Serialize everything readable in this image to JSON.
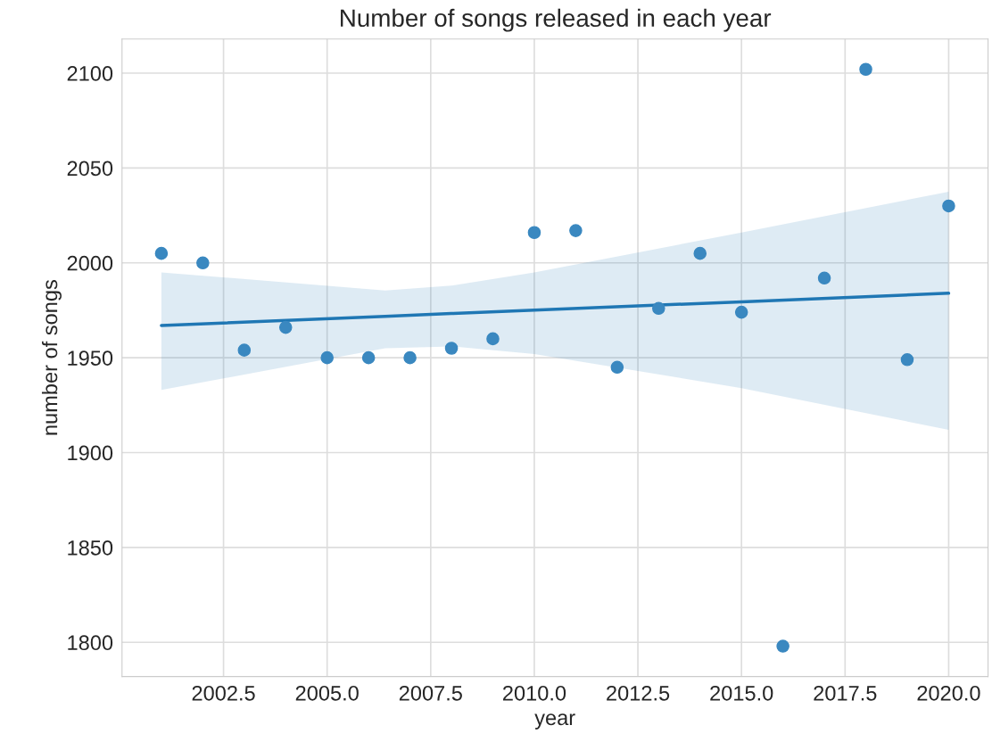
{
  "chart_data": {
    "type": "scatter",
    "title": "Number of songs released in each year",
    "xlabel": "year",
    "ylabel": "number of songs",
    "xlim": [
      2000.05,
      2020.95
    ],
    "xticks": [
      {
        "value": 2002.5,
        "label": "2002.5"
      },
      {
        "value": 2005,
        "label": "2005.0"
      },
      {
        "value": 2007.5,
        "label": "2007.5"
      },
      {
        "value": 2010,
        "label": "2010.0"
      },
      {
        "value": 2012.5,
        "label": "2012.5"
      },
      {
        "value": 2015,
        "label": "2015.0"
      },
      {
        "value": 2017.5,
        "label": "2017.5"
      },
      {
        "value": 2020,
        "label": "2020.0"
      }
    ],
    "ylim": [
      1782,
      2118
    ],
    "yticks": [
      1800,
      1850,
      1900,
      1950,
      2000,
      2050,
      2100
    ],
    "grid": true,
    "legend": false,
    "series": [
      {
        "color": "#3a88c0",
        "marker": "circle",
        "x": [
          2001,
          2002,
          2003,
          2004,
          2005,
          2006,
          2007,
          2008,
          2009,
          2010,
          2011,
          2012,
          2013,
          2014,
          2015,
          2016,
          2017,
          2018,
          2019,
          2020
        ],
        "values": [
          2005,
          2000,
          1954,
          1966,
          1950,
          1950,
          1950,
          1955,
          1960,
          2016,
          2017,
          1945,
          1976,
          2005,
          1974,
          1798,
          1992,
          2102,
          1949,
          2030
        ]
      },
      {
        "type": "line",
        "color": "#1f77b4",
        "line_style": "solid",
        "x": [
          2001,
          2006.4,
          2008,
          2010,
          2015,
          2020
        ],
        "values": [
          1967,
          1971.8,
          1973.3,
          1975.1,
          1979.5,
          1984
        ],
        "lower": [
          1933,
          1955,
          1956,
          1952,
          1934,
          1912
        ],
        "upper": [
          1995,
          1985.5,
          1988,
          1995,
          2016,
          2037.5
        ]
      }
    ]
  }
}
